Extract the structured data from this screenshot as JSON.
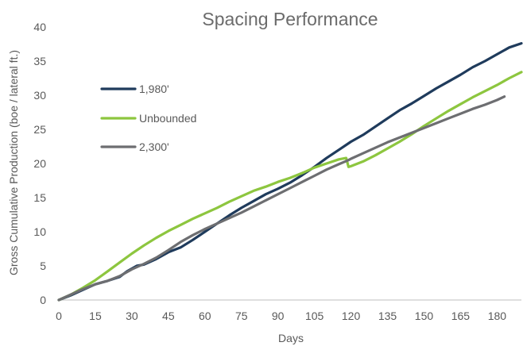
{
  "chart_data": {
    "type": "line",
    "title": "Spacing Performance",
    "xlabel": "Days",
    "ylabel": "Gross Cumulative Production (boe / lateral ft.)",
    "xlim": [
      0,
      190
    ],
    "ylim": [
      0,
      40
    ],
    "x_ticks": [
      0,
      15,
      30,
      45,
      60,
      75,
      90,
      105,
      120,
      135,
      150,
      165,
      180
    ],
    "y_ticks": [
      0,
      5,
      10,
      15,
      20,
      25,
      30,
      35,
      40
    ],
    "grid": false,
    "legend_position": "upper-left",
    "series": [
      {
        "name": "1,980'",
        "color": "#1f3b5c",
        "points": [
          [
            0,
            0
          ],
          [
            5,
            0.7
          ],
          [
            10,
            1.5
          ],
          [
            15,
            2.3
          ],
          [
            20,
            2.8
          ],
          [
            25,
            3.4
          ],
          [
            28,
            4.2
          ],
          [
            32,
            5
          ],
          [
            35,
            5.2
          ],
          [
            40,
            6
          ],
          [
            45,
            7
          ],
          [
            50,
            7.7
          ],
          [
            55,
            8.8
          ],
          [
            60,
            10
          ],
          [
            65,
            11.2
          ],
          [
            70,
            12.4
          ],
          [
            75,
            13.5
          ],
          [
            80,
            14.5
          ],
          [
            85,
            15.5
          ],
          [
            90,
            16.3
          ],
          [
            95,
            17.2
          ],
          [
            100,
            18.3
          ],
          [
            105,
            19.5
          ],
          [
            110,
            20.8
          ],
          [
            115,
            22
          ],
          [
            120,
            23.2
          ],
          [
            125,
            24.2
          ],
          [
            130,
            25.4
          ],
          [
            135,
            26.6
          ],
          [
            140,
            27.8
          ],
          [
            145,
            28.8
          ],
          [
            150,
            29.9
          ],
          [
            155,
            31
          ],
          [
            160,
            32
          ],
          [
            165,
            33
          ],
          [
            170,
            34.1
          ],
          [
            175,
            35
          ],
          [
            180,
            36
          ],
          [
            185,
            37
          ],
          [
            190,
            37.6
          ]
        ]
      },
      {
        "name": "Unbounded",
        "color": "#8dc63f",
        "points": [
          [
            0,
            0
          ],
          [
            5,
            0.8
          ],
          [
            10,
            1.8
          ],
          [
            15,
            2.9
          ],
          [
            20,
            4.2
          ],
          [
            25,
            5.5
          ],
          [
            30,
            6.8
          ],
          [
            35,
            8
          ],
          [
            40,
            9.1
          ],
          [
            45,
            10.1
          ],
          [
            50,
            11
          ],
          [
            55,
            11.9
          ],
          [
            60,
            12.7
          ],
          [
            65,
            13.5
          ],
          [
            70,
            14.4
          ],
          [
            75,
            15.2
          ],
          [
            80,
            16
          ],
          [
            85,
            16.6
          ],
          [
            90,
            17.3
          ],
          [
            95,
            17.9
          ],
          [
            100,
            18.6
          ],
          [
            105,
            19.4
          ],
          [
            110,
            20
          ],
          [
            115,
            20.6
          ],
          [
            118,
            20.8
          ],
          [
            119,
            19.5
          ],
          [
            120,
            19.6
          ],
          [
            125,
            20.3
          ],
          [
            130,
            21.2
          ],
          [
            135,
            22.2
          ],
          [
            140,
            23.2
          ],
          [
            145,
            24.3
          ],
          [
            150,
            25.5
          ],
          [
            155,
            26.6
          ],
          [
            160,
            27.7
          ],
          [
            165,
            28.7
          ],
          [
            170,
            29.7
          ],
          [
            175,
            30.6
          ],
          [
            180,
            31.5
          ],
          [
            185,
            32.5
          ],
          [
            190,
            33.4
          ]
        ]
      },
      {
        "name": "2,300'",
        "color": "#6d6e71",
        "points": [
          [
            0,
            0
          ],
          [
            5,
            0.8
          ],
          [
            10,
            1.6
          ],
          [
            15,
            2.3
          ],
          [
            20,
            2.8
          ],
          [
            25,
            3.5
          ],
          [
            30,
            4.5
          ],
          [
            35,
            5.3
          ],
          [
            40,
            6.2
          ],
          [
            45,
            7.3
          ],
          [
            50,
            8.5
          ],
          [
            55,
            9.5
          ],
          [
            60,
            10.4
          ],
          [
            65,
            11.2
          ],
          [
            70,
            12
          ],
          [
            75,
            12.8
          ],
          [
            80,
            13.7
          ],
          [
            85,
            14.6
          ],
          [
            90,
            15.5
          ],
          [
            95,
            16.4
          ],
          [
            100,
            17.3
          ],
          [
            105,
            18.2
          ],
          [
            110,
            19.1
          ],
          [
            115,
            19.9
          ],
          [
            119,
            20.5
          ],
          [
            120,
            20.7
          ],
          [
            125,
            21.5
          ],
          [
            130,
            22.3
          ],
          [
            135,
            23.1
          ],
          [
            140,
            23.8
          ],
          [
            145,
            24.5
          ],
          [
            150,
            25.2
          ],
          [
            155,
            25.9
          ],
          [
            160,
            26.6
          ],
          [
            165,
            27.3
          ],
          [
            170,
            28
          ],
          [
            175,
            28.6
          ],
          [
            180,
            29.3
          ],
          [
            183,
            29.8
          ]
        ]
      }
    ]
  }
}
